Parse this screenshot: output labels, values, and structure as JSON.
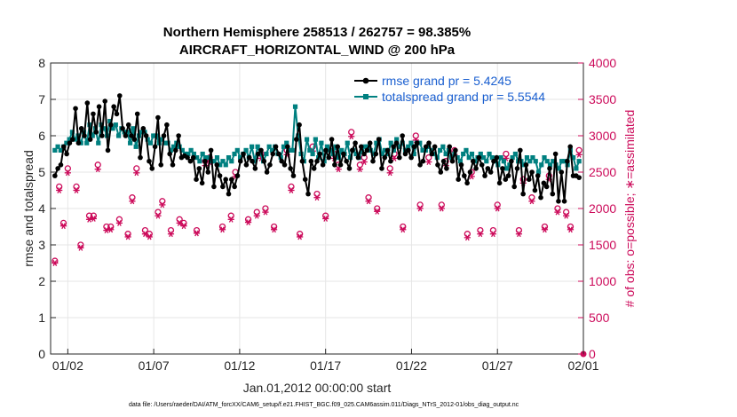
{
  "chart_data": {
    "type": "line",
    "title": [
      "Northern Hemisphere 258513 / 262757 = 98.385%",
      "AIRCRAFT_HORIZONTAL_WIND @ 200 hPa"
    ],
    "xlabel": "Jan.01,2012 00:00:00 start",
    "ylabel_left": "rmse and totalspread",
    "ylabel_right": "# of obs: o=possible; ∗=assimilated",
    "footnote": "data file: /Users/raeder/DAI/ATM_forcXX/CAM6_setup/f.e21.FHIST_BGC.f09_025.CAM6assim.011/Diags_NTrS_2012-01/obs_diag_output.nc",
    "xlim": [
      0.5,
      31.5
    ],
    "ylim_left": [
      0,
      8
    ],
    "ylim_right": [
      0,
      4000
    ],
    "x_ticks": [
      1.5,
      6.5,
      11.5,
      16.5,
      21.5,
      26.5,
      31.5
    ],
    "x_tick_labels": [
      "01/02",
      "01/07",
      "01/12",
      "01/17",
      "01/22",
      "01/27",
      "02/01"
    ],
    "y_ticks_left": [
      0,
      1,
      2,
      3,
      4,
      5,
      6,
      7,
      8
    ],
    "y_ticks_right": [
      0,
      500,
      1000,
      1500,
      2000,
      2500,
      3000,
      3500,
      4000
    ],
    "legend_position": "top-right",
    "colors": {
      "rmse": "#000000",
      "spread": "#008080",
      "obs": "#cc0a5a",
      "right_axis": "#cc0a5a"
    },
    "series": [
      {
        "name": "rmse grand pr = 5.4245",
        "axis": "left",
        "values": [
          4.9,
          5.1,
          5.2,
          5.7,
          5.5,
          5.8,
          5.9,
          6.75,
          5.8,
          6.2,
          6.0,
          6.9,
          5.9,
          6.6,
          6.1,
          6.8,
          6.0,
          6.95,
          5.6,
          6.3,
          6.8,
          6.6,
          7.1,
          6.2,
          6.0,
          6.3,
          6.0,
          5.9,
          6.6,
          5.4,
          6.2,
          6.0,
          5.3,
          5.1,
          5.7,
          6.5,
          5.2,
          6.0,
          6.3,
          5.5,
          5.2,
          5.6,
          6.0,
          5.4,
          5.45,
          5.4,
          5.3,
          5.4,
          4.8,
          5.1,
          4.7,
          5.3,
          5.0,
          5.6,
          4.6,
          5.2,
          4.9,
          4.6,
          4.8,
          4.4,
          4.8,
          4.6,
          4.9,
          5.3,
          5.5,
          5.2,
          5.4,
          5.3,
          5.1,
          5.5,
          5.6,
          5.3,
          5.0,
          5.2,
          5.5,
          5.7,
          5.5,
          5.3,
          5.2,
          5.7,
          5.1,
          4.9,
          5.9,
          6.3,
          5.3,
          4.8,
          4.4,
          5.3,
          5.1,
          5.3,
          5.5,
          5.2,
          5.6,
          5.4,
          5.9,
          5.2,
          5.7,
          5.2,
          5.5,
          5.3,
          5.1,
          5.6,
          5.8,
          5.4,
          5.7,
          5.5,
          5.6,
          5.8,
          5.3,
          5.5,
          5.9,
          5.1,
          5.4,
          5.6,
          5.3,
          5.7,
          5.8,
          5.4,
          6.0,
          5.5,
          5.6,
          5.4,
          5.7,
          5.8,
          5.2,
          5.3,
          5.7,
          5.8,
          5.5,
          5.7,
          5.2,
          5.0,
          5.3,
          5.1,
          5.7,
          5.3,
          5.6,
          4.8,
          5.2,
          4.9,
          4.7,
          5.0,
          5.3,
          5.1,
          5.4,
          5.2,
          4.9,
          5.1,
          5.0,
          5.3,
          5.4,
          4.7,
          5.1,
          4.8,
          4.9,
          5.3,
          4.6,
          5.1,
          5.6,
          4.4,
          5.2,
          4.8,
          5.0,
          4.5,
          4.9,
          4.3,
          4.7,
          4.6,
          5.1,
          4.4,
          5.5,
          4.2,
          5.0,
          4.2,
          5.3,
          5.7,
          4.9,
          4.9,
          4.85
        ]
      },
      {
        "name": "totalspread grand pr = 5.5544",
        "axis": "left",
        "values": [
          5.6,
          5.7,
          5.6,
          5.7,
          5.8,
          5.9,
          6.1,
          5.9,
          6.0,
          5.8,
          6.1,
          5.8,
          6.3,
          6.0,
          6.2,
          5.8,
          6.3,
          6.2,
          6.0,
          6.4,
          6.2,
          6.3,
          6.0,
          6.2,
          6.1,
          6.1,
          5.8,
          6.2,
          5.7,
          6.0,
          6.1,
          6.1,
          5.9,
          5.8,
          6.0,
          6.0,
          5.8,
          5.9,
          5.8,
          5.8,
          5.6,
          5.7,
          5.8,
          5.7,
          5.6,
          5.5,
          5.5,
          5.6,
          5.5,
          5.4,
          5.3,
          5.5,
          5.4,
          5.4,
          5.3,
          5.3,
          5.4,
          5.2,
          5.3,
          5.2,
          5.4,
          5.3,
          5.5,
          5.6,
          5.4,
          5.5,
          5.6,
          5.4,
          5.7,
          5.3,
          5.7,
          5.5,
          5.3,
          5.5,
          5.7,
          5.6,
          5.7,
          5.5,
          5.4,
          5.7,
          5.8,
          5.6,
          5.6,
          6.8,
          6.0,
          5.5,
          5.3,
          5.9,
          5.6,
          5.5,
          5.9,
          5.4,
          5.8,
          5.3,
          5.7,
          5.6,
          5.5,
          5.7,
          5.4,
          5.6,
          5.5,
          5.8,
          5.4,
          5.6,
          5.5,
          5.4,
          5.6,
          5.7,
          5.7,
          5.6,
          5.5,
          5.8,
          5.9,
          5.5,
          5.6,
          5.5,
          5.8,
          5.6,
          5.9,
          5.7,
          5.8,
          5.6,
          5.7,
          5.8,
          5.5,
          5.8,
          5.8,
          5.6,
          5.6,
          5.7,
          5.6,
          5.5,
          5.4,
          5.6,
          5.7,
          5.5,
          5.6,
          5.4,
          5.5,
          5.4,
          5.3,
          5.5,
          5.6,
          5.4,
          5.5,
          5.3,
          5.4,
          5.5,
          5.4,
          5.3,
          5.5,
          5.4,
          5.3,
          5.2,
          5.4,
          5.3,
          5.1,
          5.2,
          5.4,
          5.5,
          5.3,
          5.3,
          5.2,
          5.4,
          5.3,
          5.4,
          5.3,
          5.0,
          5.2,
          5.4,
          5.3,
          5.2,
          5.3,
          5.2,
          5.1,
          5.3,
          5.3,
          5.2,
          5.6,
          5.4,
          5.1,
          5.3
        ]
      },
      {
        "name": "obs possible",
        "axis": "right",
        "marker": "o",
        "x": [
          0.75,
          1.25,
          1.5,
          2.25,
          2.75,
          3.25,
          3.75,
          4.5,
          5.0,
          5.5,
          6.25,
          6.75,
          7.5,
          8.25,
          9.0,
          9.75,
          10.5,
          11.25,
          12.0,
          12.75,
          13.5,
          14.25,
          15.0,
          15.75,
          16.5,
          17.25,
          18.0,
          18.75,
          19.5,
          20.25,
          21.0,
          21.75,
          22.5,
          23.25,
          24.0,
          24.75,
          25.5,
          26.25,
          27.0,
          27.75,
          28.5,
          29.25,
          30.0,
          30.75,
          31.25,
          1.0,
          2.0,
          3.0,
          4.0,
          5.25,
          6.0,
          7.0,
          8.0,
          9.5,
          11.0,
          12.5,
          13.0,
          14.5,
          16.0,
          17.0,
          18.5,
          19.0,
          20.5,
          22.0,
          23.5,
          25.0,
          26.5,
          28.0,
          29.5,
          30.5
        ],
        "values": [
          1280,
          1800,
          2550,
          1500,
          1900,
          2600,
          1750,
          1850,
          1650,
          2550,
          1650,
          1950,
          1700,
          1800,
          1700,
          2700,
          1750,
          2500,
          1850,
          2750,
          1750,
          2800,
          1650,
          2850,
          1900,
          2600,
          3050,
          2700,
          2000,
          2550,
          1750,
          3000,
          2700,
          2050,
          2800,
          1650,
          1700,
          1700,
          2750,
          1700,
          2150,
          1750,
          2000,
          1750,
          2800,
          2300,
          2300,
          1900,
          1750,
          2150,
          1700,
          2100,
          1850,
          2650,
          1900,
          1950,
          2000,
          2300,
          2200,
          2750,
          2600,
          2150,
          2750,
          2050,
          2650,
          2500,
          2050,
          2400,
          2450,
          1950
        ]
      },
      {
        "name": "obs assimilated",
        "axis": "right",
        "marker": "*",
        "x": [
          0.75,
          1.25,
          1.5,
          2.25,
          2.75,
          3.25,
          3.75,
          4.5,
          5.0,
          5.5,
          6.25,
          6.75,
          7.5,
          8.25,
          9.0,
          9.75,
          10.5,
          11.25,
          12.0,
          12.75,
          13.5,
          14.25,
          15.0,
          15.75,
          16.5,
          17.25,
          18.0,
          18.75,
          19.5,
          20.25,
          21.0,
          21.75,
          22.5,
          23.25,
          24.0,
          24.75,
          25.5,
          26.25,
          27.0,
          27.75,
          28.5,
          29.25,
          30.0,
          30.75,
          31.25,
          1.0,
          2.0,
          3.0,
          4.0,
          5.25,
          6.0,
          7.0,
          8.0,
          9.5,
          11.0,
          12.5,
          13.0,
          14.5,
          16.0,
          17.0,
          18.5,
          19.0,
          20.5,
          22.0,
          23.5,
          25.0,
          26.5,
          28.0,
          29.5,
          30.5
        ],
        "values": [
          1250,
          1760,
          2490,
          1460,
          1850,
          2540,
          1700,
          1800,
          1610,
          2490,
          1610,
          1900,
          1650,
          1760,
          1660,
          2640,
          1710,
          2440,
          1810,
          2690,
          1710,
          2740,
          1610,
          2790,
          1860,
          2540,
          2990,
          2640,
          1960,
          2490,
          1710,
          2940,
          2640,
          2000,
          2740,
          1600,
          1650,
          1650,
          2690,
          1650,
          2100,
          1710,
          1950,
          1710,
          2740,
          2250,
          2250,
          1860,
          1710,
          2100,
          1650,
          2050,
          1800,
          2590,
          1850,
          1900,
          1950,
          2250,
          2150,
          2690,
          2540,
          2100,
          2690,
          2000,
          2590,
          2440,
          2000,
          2350,
          2400,
          1900
        ]
      }
    ]
  }
}
